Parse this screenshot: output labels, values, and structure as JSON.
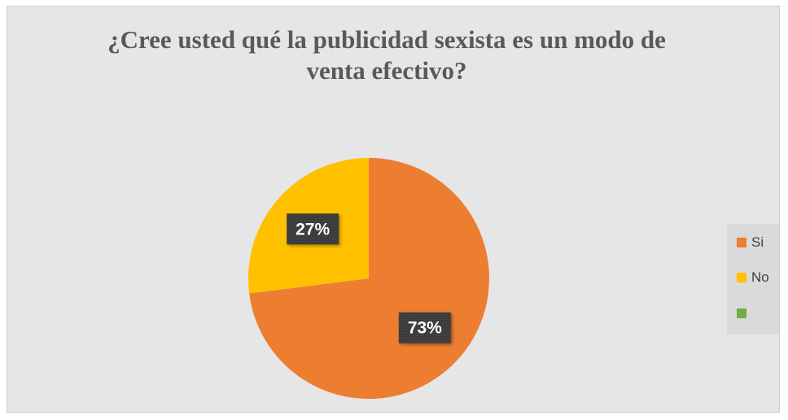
{
  "chart_data": {
    "type": "pie",
    "title_lines": [
      "¿Cree usted qué la publicidad sexista es un modo de",
      "venta efectivo?"
    ],
    "categories": [
      "Si",
      "No",
      ""
    ],
    "values": [
      73,
      27,
      0
    ],
    "data_labels": [
      "73%",
      "27%",
      ""
    ],
    "colors": [
      "#ed7d31",
      "#ffc000",
      "#70ad47"
    ],
    "legend_position": "right",
    "start_angle_deg": 0,
    "direction": "clockwise"
  }
}
